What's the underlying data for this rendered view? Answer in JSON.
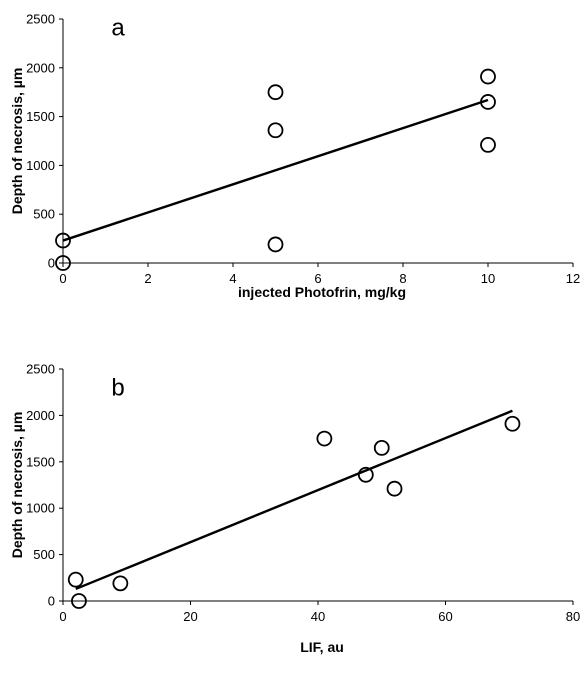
{
  "chart_data": [
    {
      "type": "scatter",
      "panel_label": "a",
      "xlabel": "injected Photofrin, mg/kg",
      "ylabel": "Depth of necrosis, µm",
      "xlim": [
        0,
        12
      ],
      "ylim": [
        0,
        2500
      ],
      "x_ticks": [
        0,
        2,
        4,
        6,
        8,
        10,
        12
      ],
      "y_ticks": [
        0,
        500,
        1000,
        1500,
        2000,
        2500
      ],
      "grid": false,
      "points": [
        {
          "x": 0,
          "y": 0
        },
        {
          "x": 0,
          "y": 230
        },
        {
          "x": 5,
          "y": 190
        },
        {
          "x": 5,
          "y": 1360
        },
        {
          "x": 5,
          "y": 1750
        },
        {
          "x": 10,
          "y": 1210
        },
        {
          "x": 10,
          "y": 1650
        },
        {
          "x": 10,
          "y": 1910
        }
      ],
      "trendline": {
        "x": [
          0,
          10
        ],
        "y": [
          230,
          1670
        ]
      }
    },
    {
      "type": "scatter",
      "panel_label": "b",
      "xlabel": "LIF, au",
      "ylabel": "Depth of necrosis, µm",
      "xlim": [
        0,
        80
      ],
      "ylim": [
        0,
        2500
      ],
      "x_ticks": [
        0,
        20,
        40,
        60,
        80
      ],
      "y_ticks": [
        0,
        500,
        1000,
        1500,
        2000,
        2500
      ],
      "grid": false,
      "points": [
        {
          "x": 2,
          "y": 230
        },
        {
          "x": 2.5,
          "y": 0
        },
        {
          "x": 9,
          "y": 190
        },
        {
          "x": 41,
          "y": 1750
        },
        {
          "x": 47.5,
          "y": 1360
        },
        {
          "x": 50,
          "y": 1650
        },
        {
          "x": 52,
          "y": 1210
        },
        {
          "x": 70.5,
          "y": 1910
        }
      ],
      "trendline": {
        "x": [
          2,
          70.5
        ],
        "y": [
          130,
          2050
        ]
      }
    }
  ]
}
